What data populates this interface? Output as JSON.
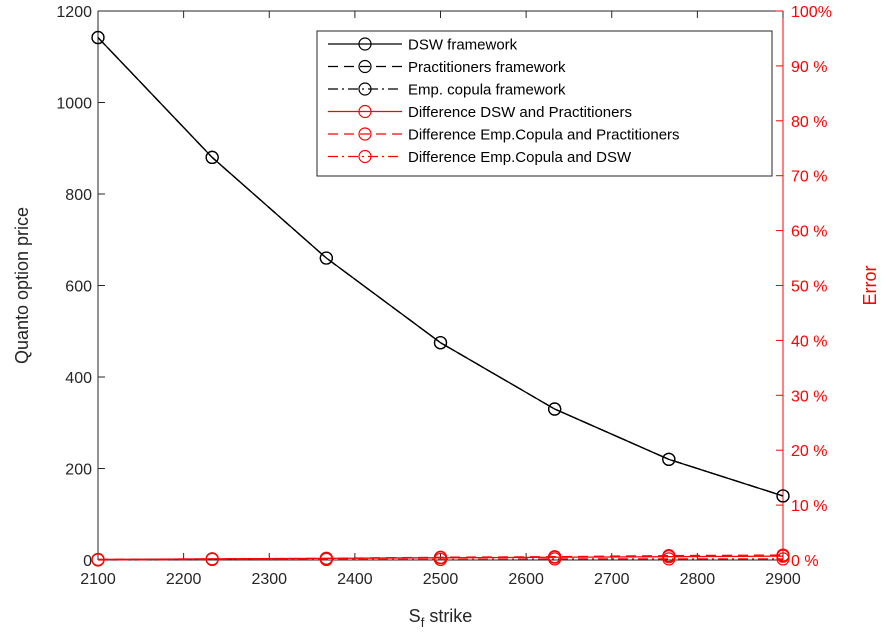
{
  "chart_data": {
    "type": "line",
    "x": [
      2100,
      2233.33,
      2366.67,
      2500,
      2633.33,
      2766.67,
      2900
    ],
    "xlim": [
      2100,
      2900
    ],
    "xticks": [
      "2100",
      "2200",
      "2300",
      "2400",
      "2500",
      "2600",
      "2700",
      "2800",
      "2900"
    ],
    "xlabel": {
      "base": "S",
      "sub": "f",
      "rest": " strike"
    },
    "ylabel_left": "Quanto option price",
    "ylim_left": [
      0,
      1200
    ],
    "yticks_left": [
      "0",
      "200",
      "400",
      "600",
      "800",
      "1000",
      "1200"
    ],
    "ylabel_right": "Error",
    "ylim_right": [
      0,
      100
    ],
    "yticks_right": [
      "0 %",
      "10 %",
      "20 %",
      "30 %",
      "40 %",
      "50 %",
      "60 %",
      "70 %",
      "80 %",
      "90 %",
      "100%"
    ],
    "grid": false,
    "legend_position": "top-right",
    "colors": {
      "price": "#000000",
      "error": "#ff0000"
    },
    "series": [
      {
        "name": "DSW framework",
        "axis": "left",
        "linestyle": "solid",
        "color": "#000000",
        "values": [
          1142,
          880,
          660,
          475,
          330,
          220,
          140
        ]
      },
      {
        "name": "Practitioners framework",
        "axis": "left",
        "linestyle": "dashed",
        "color": "#000000",
        "values": [
          1142,
          880,
          660,
          475,
          330,
          220,
          140
        ]
      },
      {
        "name": "Emp. copula framework",
        "axis": "left",
        "linestyle": "dashdot",
        "color": "#000000",
        "values": [
          1142,
          880,
          660,
          475,
          330,
          220,
          140
        ]
      },
      {
        "name": "Difference DSW and Practitioners",
        "axis": "right",
        "linestyle": "solid",
        "color": "#ff0000",
        "values": [
          0.1,
          0.2,
          0.3,
          0.4,
          0.5,
          0.6,
          0.7
        ]
      },
      {
        "name": "Difference Emp.Copula and Practitioners",
        "axis": "right",
        "linestyle": "dashed",
        "color": "#ff0000",
        "values": [
          0.1,
          0.2,
          0.3,
          0.5,
          0.6,
          0.8,
          0.9
        ]
      },
      {
        "name": "Difference Emp.Copula and DSW",
        "axis": "right",
        "linestyle": "dashdot",
        "color": "#ff0000",
        "values": [
          0.0,
          0.1,
          0.1,
          0.1,
          0.2,
          0.2,
          0.2
        ]
      }
    ]
  }
}
